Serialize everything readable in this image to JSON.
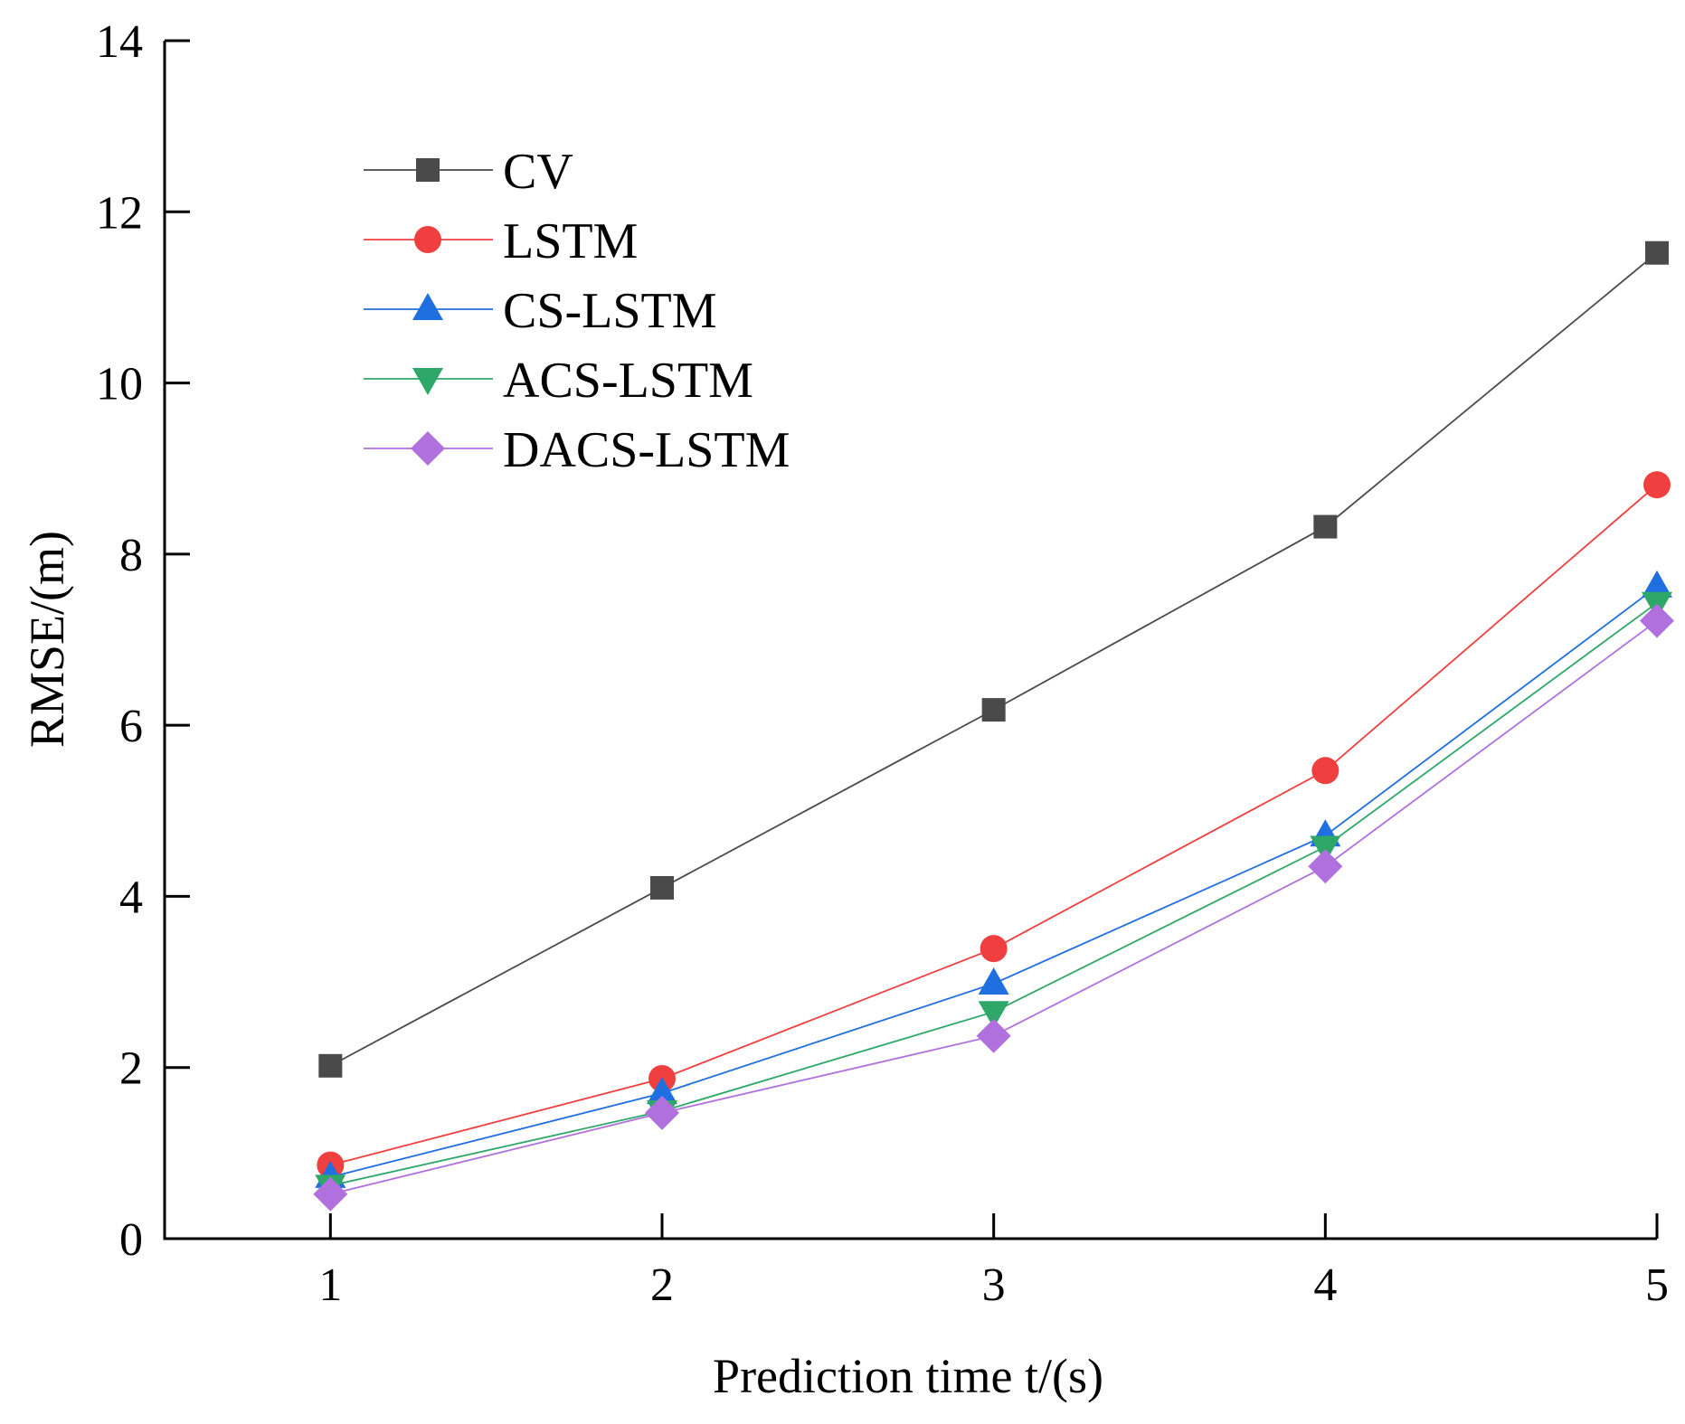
{
  "chart_data": {
    "type": "line",
    "title": "",
    "xlabel": "Prediction time t/(s)",
    "ylabel": "RMSE/(m)",
    "x": [
      1,
      2,
      3,
      4,
      5
    ],
    "xticks": [
      "1",
      "2",
      "3",
      "4",
      "5"
    ],
    "xlim": [
      0.5,
      5.0
    ],
    "ylim": [
      0,
      14
    ],
    "yticks": [
      "0",
      "2",
      "4",
      "6",
      "8",
      "10",
      "12",
      "14"
    ],
    "grid": false,
    "legend_position": "top-left",
    "series": [
      {
        "name": "CV",
        "marker": "square",
        "color": "#4a4a4a",
        "values": [
          2.02,
          4.1,
          6.18,
          8.32,
          11.52
        ]
      },
      {
        "name": "LSTM",
        "marker": "circle",
        "color": "#ef3f3f",
        "values": [
          0.86,
          1.87,
          3.39,
          5.47,
          8.81
        ]
      },
      {
        "name": "CS-LSTM",
        "marker": "triangle-up",
        "color": "#1f6fe0",
        "values": [
          0.72,
          1.7,
          2.98,
          4.71,
          7.62
        ]
      },
      {
        "name": "ACS-LSTM",
        "marker": "triangle-down",
        "color": "#2ea868",
        "values": [
          0.62,
          1.49,
          2.65,
          4.58,
          7.43
        ]
      },
      {
        "name": "DACS-LSTM",
        "marker": "diamond",
        "color": "#b071de",
        "values": [
          0.52,
          1.47,
          2.37,
          4.35,
          7.22
        ]
      }
    ]
  }
}
